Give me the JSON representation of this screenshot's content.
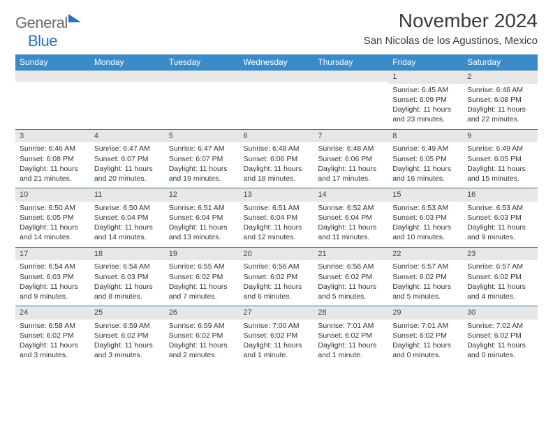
{
  "logo": {
    "part1": "General",
    "part2": "Blue"
  },
  "title": "November 2024",
  "location": "San Nicolas de los Agustinos, Mexico",
  "colors": {
    "header_bg": "#3b8bc9",
    "header_text": "#ffffff",
    "daynum_bg": "#e7e7e7",
    "row_border": "#2d6fa8",
    "logo_blue": "#2a71b8",
    "logo_gray": "#6b6b6b",
    "text": "#333333"
  },
  "weekdays": [
    "Sunday",
    "Monday",
    "Tuesday",
    "Wednesday",
    "Thursday",
    "Friday",
    "Saturday"
  ],
  "weeks": [
    [
      null,
      null,
      null,
      null,
      null,
      {
        "n": "1",
        "sr": "6:45 AM",
        "ss": "6:09 PM",
        "dl": "11 hours and 23 minutes."
      },
      {
        "n": "2",
        "sr": "6:46 AM",
        "ss": "6:08 PM",
        "dl": "11 hours and 22 minutes."
      }
    ],
    [
      {
        "n": "3",
        "sr": "6:46 AM",
        "ss": "6:08 PM",
        "dl": "11 hours and 21 minutes."
      },
      {
        "n": "4",
        "sr": "6:47 AM",
        "ss": "6:07 PM",
        "dl": "11 hours and 20 minutes."
      },
      {
        "n": "5",
        "sr": "6:47 AM",
        "ss": "6:07 PM",
        "dl": "11 hours and 19 minutes."
      },
      {
        "n": "6",
        "sr": "6:48 AM",
        "ss": "6:06 PM",
        "dl": "11 hours and 18 minutes."
      },
      {
        "n": "7",
        "sr": "6:48 AM",
        "ss": "6:06 PM",
        "dl": "11 hours and 17 minutes."
      },
      {
        "n": "8",
        "sr": "6:49 AM",
        "ss": "6:05 PM",
        "dl": "11 hours and 16 minutes."
      },
      {
        "n": "9",
        "sr": "6:49 AM",
        "ss": "6:05 PM",
        "dl": "11 hours and 15 minutes."
      }
    ],
    [
      {
        "n": "10",
        "sr": "6:50 AM",
        "ss": "6:05 PM",
        "dl": "11 hours and 14 minutes."
      },
      {
        "n": "11",
        "sr": "6:50 AM",
        "ss": "6:04 PM",
        "dl": "11 hours and 14 minutes."
      },
      {
        "n": "12",
        "sr": "6:51 AM",
        "ss": "6:04 PM",
        "dl": "11 hours and 13 minutes."
      },
      {
        "n": "13",
        "sr": "6:51 AM",
        "ss": "6:04 PM",
        "dl": "11 hours and 12 minutes."
      },
      {
        "n": "14",
        "sr": "6:52 AM",
        "ss": "6:04 PM",
        "dl": "11 hours and 11 minutes."
      },
      {
        "n": "15",
        "sr": "6:53 AM",
        "ss": "6:03 PM",
        "dl": "11 hours and 10 minutes."
      },
      {
        "n": "16",
        "sr": "6:53 AM",
        "ss": "6:03 PM",
        "dl": "11 hours and 9 minutes."
      }
    ],
    [
      {
        "n": "17",
        "sr": "6:54 AM",
        "ss": "6:03 PM",
        "dl": "11 hours and 9 minutes."
      },
      {
        "n": "18",
        "sr": "6:54 AM",
        "ss": "6:03 PM",
        "dl": "11 hours and 8 minutes."
      },
      {
        "n": "19",
        "sr": "6:55 AM",
        "ss": "6:02 PM",
        "dl": "11 hours and 7 minutes."
      },
      {
        "n": "20",
        "sr": "6:56 AM",
        "ss": "6:02 PM",
        "dl": "11 hours and 6 minutes."
      },
      {
        "n": "21",
        "sr": "6:56 AM",
        "ss": "6:02 PM",
        "dl": "11 hours and 5 minutes."
      },
      {
        "n": "22",
        "sr": "6:57 AM",
        "ss": "6:02 PM",
        "dl": "11 hours and 5 minutes."
      },
      {
        "n": "23",
        "sr": "6:57 AM",
        "ss": "6:02 PM",
        "dl": "11 hours and 4 minutes."
      }
    ],
    [
      {
        "n": "24",
        "sr": "6:58 AM",
        "ss": "6:02 PM",
        "dl": "11 hours and 3 minutes."
      },
      {
        "n": "25",
        "sr": "6:59 AM",
        "ss": "6:02 PM",
        "dl": "11 hours and 3 minutes."
      },
      {
        "n": "26",
        "sr": "6:59 AM",
        "ss": "6:02 PM",
        "dl": "11 hours and 2 minutes."
      },
      {
        "n": "27",
        "sr": "7:00 AM",
        "ss": "6:02 PM",
        "dl": "11 hours and 1 minute."
      },
      {
        "n": "28",
        "sr": "7:01 AM",
        "ss": "6:02 PM",
        "dl": "11 hours and 1 minute."
      },
      {
        "n": "29",
        "sr": "7:01 AM",
        "ss": "6:02 PM",
        "dl": "11 hours and 0 minutes."
      },
      {
        "n": "30",
        "sr": "7:02 AM",
        "ss": "6:02 PM",
        "dl": "11 hours and 0 minutes."
      }
    ]
  ],
  "labels": {
    "sunrise": "Sunrise: ",
    "sunset": "Sunset: ",
    "daylight": "Daylight: "
  }
}
